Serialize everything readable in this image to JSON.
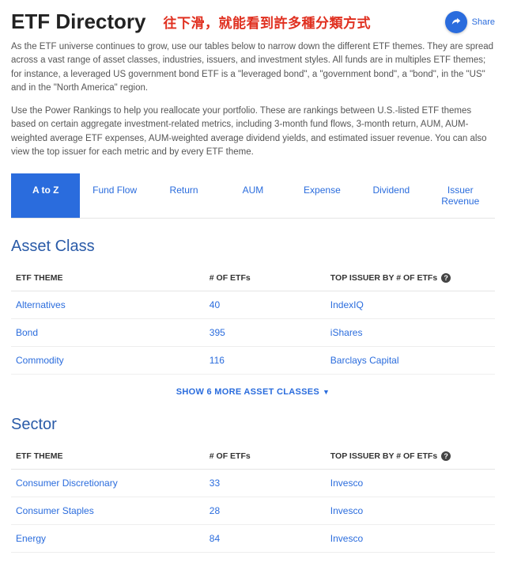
{
  "header": {
    "title": "ETF Directory",
    "annotation": "往下滑，就能看到許多種分類方式",
    "share_label": "Share"
  },
  "intro": {
    "p1": "As the ETF universe continues to grow, use our tables below to narrow down the different ETF themes. They are spread across a vast range of asset classes, industries, issuers, and investment styles. All funds are in multiples ETF themes; for instance, a leveraged US government bond ETF is a \"leveraged bond\", a \"government bond\", a \"bond\", in the \"US\" and in the \"North America\" region.",
    "p2": "Use the Power Rankings to help you reallocate your portfolio. These are rankings between U.S.-listed ETF themes based on certain aggregate investment-related metrics, including 3-month fund flows, 3-month return, AUM, AUM-weighted average ETF expenses, AUM-weighted average dividend yields, and estimated issuer revenue. You can also view the top issuer for each metric and by every ETF theme."
  },
  "tabs": [
    "A to Z",
    "Fund Flow",
    "Return",
    "AUM",
    "Expense",
    "Dividend",
    "Issuer Revenue"
  ],
  "columns": {
    "theme": "ETF THEME",
    "count": "# OF ETFs",
    "issuer": "TOP ISSUER BY # OF ETFs"
  },
  "sections": [
    {
      "title": "Asset Class",
      "rows": [
        {
          "theme": "Alternatives",
          "count": "40",
          "issuer": "IndexIQ"
        },
        {
          "theme": "Bond",
          "count": "395",
          "issuer": "iShares"
        },
        {
          "theme": "Commodity",
          "count": "116",
          "issuer": "Barclays Capital"
        }
      ],
      "show_more": "SHOW 6 MORE ASSET CLASSES"
    },
    {
      "title": "Sector",
      "rows": [
        {
          "theme": "Consumer Discretionary",
          "count": "33",
          "issuer": "Invesco"
        },
        {
          "theme": "Consumer Staples",
          "count": "28",
          "issuer": "Invesco"
        },
        {
          "theme": "Energy",
          "count": "84",
          "issuer": "Invesco"
        }
      ],
      "show_more": ""
    }
  ],
  "help_glyph": "?"
}
